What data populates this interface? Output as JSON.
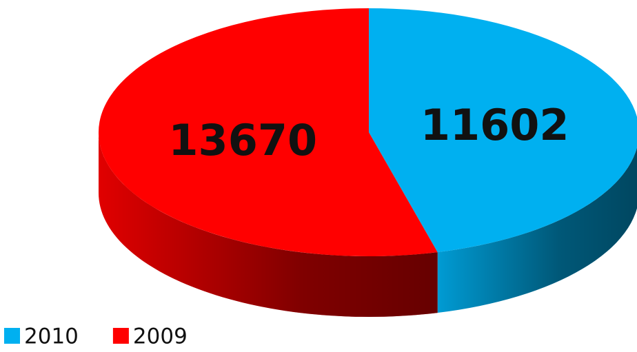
{
  "chart_data": {
    "type": "pie",
    "categories": [
      "2010",
      "2009"
    ],
    "values": [
      11602,
      13670
    ],
    "colors": [
      "#00b0f0",
      "#ff0000"
    ],
    "legend": "bottom-left"
  }
}
